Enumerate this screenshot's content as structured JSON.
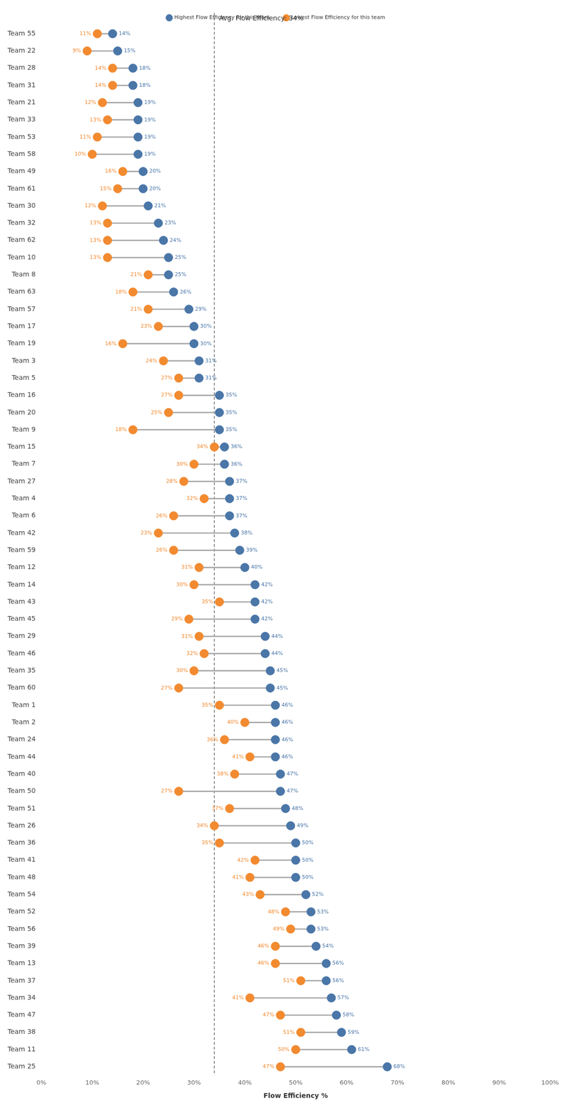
{
  "chart_data": {
    "type": "dumbbell",
    "orientation": "horizontal",
    "x_label": "Flow Efficiency %",
    "categories": [
      "Team 55",
      "Team 22",
      "Team 28",
      "Team 31",
      "Team 21",
      "Team 33",
      "Team 53",
      "Team 58",
      "Team 49",
      "Team 61",
      "Team 30",
      "Team 32",
      "Team 62",
      "Team 10",
      "Team 8",
      "Team 63",
      "Team 57",
      "Team 17",
      "Team 19",
      "Team 3",
      "Team 5",
      "Team 16",
      "Team 20",
      "Team 9",
      "Team 15",
      "Team 7",
      "Team 27",
      "Team 4",
      "Team 6",
      "Team 42",
      "Team 59",
      "Team 12",
      "Team 14",
      "Team 43",
      "Team 45",
      "Team 29",
      "Team 46",
      "Team 35",
      "Team 60",
      "Team 1",
      "Team 2",
      "Team 24",
      "Team 44",
      "Team 40",
      "Team 50",
      "Team 51",
      "Team 26",
      "Team 36",
      "Team 41",
      "Team 48",
      "Team 54",
      "Team 52",
      "Team 56",
      "Team 39",
      "Team 13",
      "Team 37",
      "Team 34",
      "Team 47",
      "Team 38",
      "Team 11",
      "Team 25"
    ],
    "series": [
      {
        "name": "Lowest Flow Efficiency for this team",
        "color": "#f28a30",
        "values": [
          11,
          9,
          14,
          14,
          12,
          13,
          11,
          10,
          16,
          15,
          12,
          13,
          13,
          13,
          21,
          18,
          21,
          23,
          16,
          24,
          27,
          27,
          25,
          18,
          34,
          30,
          28,
          32,
          26,
          23,
          26,
          31,
          30,
          35,
          29,
          31,
          32,
          30,
          27,
          35,
          40,
          36,
          41,
          38,
          27,
          37,
          34,
          35,
          42,
          41,
          43,
          48,
          49,
          46,
          46,
          51,
          41,
          47,
          51,
          50,
          47
        ],
        "value_labels": [
          "11%",
          "9%",
          "14%",
          "14%",
          "12%",
          "13%",
          "11%",
          "10%",
          "16%",
          "15%",
          "12%",
          "13%",
          "13%",
          "13%",
          "21%",
          "18%",
          "21%",
          "23%",
          "16%",
          "24%",
          "27%",
          "27%",
          "25%",
          "18%",
          "34%",
          "30%",
          "28%",
          "32%",
          "26%",
          "23%",
          "26%",
          "31%",
          "30%",
          "35%",
          "29%",
          "31%",
          "32%",
          "30%",
          "27%",
          "35%",
          "40%",
          "36%",
          "41%",
          "38%",
          "27%",
          "37%",
          "34%",
          "35%",
          "42%",
          "41%",
          "43%",
          "48%",
          "49%",
          "46%",
          "46%",
          "51%",
          "41%",
          "47%",
          "51%",
          "50%",
          "47%"
        ]
      },
      {
        "name": "Highest Flow Efficiency for this team",
        "color": "#4a76a8",
        "values": [
          14,
          15,
          18,
          18,
          19,
          19,
          19,
          19,
          20,
          20,
          21,
          23,
          24,
          25,
          25,
          26,
          29,
          30,
          30,
          31,
          31,
          35,
          35,
          35,
          36,
          36,
          37,
          37,
          37,
          38,
          39,
          40,
          42,
          42,
          42,
          44,
          44,
          45,
          45,
          46,
          46,
          46,
          46,
          47,
          47,
          48,
          49,
          50,
          50,
          50,
          52,
          53,
          53,
          54,
          56,
          56,
          57,
          58,
          59,
          61,
          68
        ],
        "value_labels": [
          "14%",
          "15%",
          "18%",
          "18%",
          "19%",
          "19%",
          "19%",
          "19%",
          "20%",
          "20%",
          "21%",
          "23%",
          "24%",
          "25%",
          "25%",
          "26%",
          "29%",
          "30%",
          "30%",
          "31%",
          "31%",
          "35%",
          "35%",
          "35%",
          "36%",
          "36%",
          "37%",
          "37%",
          "37%",
          "38%",
          "39%",
          "40%",
          "42%",
          "42%",
          "42%",
          "44%",
          "44%",
          "45%",
          "45%",
          "46%",
          "46%",
          "46%",
          "46%",
          "47%",
          "47%",
          "48%",
          "49%",
          "50%",
          "50%",
          "50%",
          "52%",
          "53%",
          "53%",
          "54%",
          "56%",
          "56%",
          "57%",
          "58%",
          "59%",
          "61%",
          "68%"
        ]
      }
    ],
    "xlim": [
      0,
      100
    ],
    "xticks": [
      {
        "value": 0,
        "label": "0%"
      },
      {
        "value": 10,
        "label": "10%"
      },
      {
        "value": 20,
        "label": "20%"
      },
      {
        "value": 30,
        "label": "30%"
      },
      {
        "value": 40,
        "label": "40%"
      },
      {
        "value": 50,
        "label": "50%"
      },
      {
        "value": 60,
        "label": "60%"
      },
      {
        "value": 70,
        "label": "70%"
      },
      {
        "value": 80,
        "label": "80%"
      },
      {
        "value": 90,
        "label": "90%"
      },
      {
        "value": 100,
        "label": "100%"
      }
    ],
    "annotations": [
      {
        "x": 34,
        "label": "Avg. Flow Efficiency: 34%"
      }
    ],
    "grid": false,
    "legend": "top",
    "data_labels": true,
    "marker": "circle"
  }
}
